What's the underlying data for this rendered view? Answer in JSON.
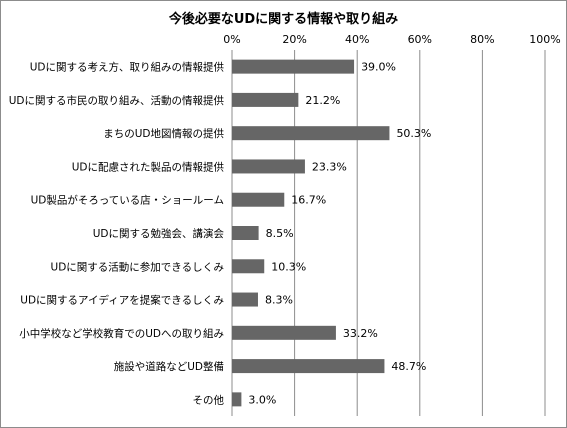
{
  "chart_data": {
    "type": "bar",
    "orientation": "horizontal",
    "title": "今後必要なUDに関する情報や取り組み",
    "xlim": [
      0,
      100
    ],
    "x_ticks": [
      "0%",
      "20%",
      "40%",
      "60%",
      "80%",
      "100%"
    ],
    "x_tick_values": [
      0,
      20,
      40,
      60,
      80,
      100
    ],
    "grid": true,
    "bar_color": "#666666",
    "categories": [
      "UDに関する考え方、取り組みの情報提供",
      "UDに関する市民の取り組み、活動の情報提供",
      "まちのUD地図情報の提供",
      "UDに配慮された製品の情報提供",
      "UD製品がそろっている店・ショールーム",
      "UDに関する勉強会、講演会",
      "UDに関する活動に参加できるしくみ",
      "UDに関するアイディアを提案できるしくみ",
      "小中学校など学校教育でのUDへの取り組み",
      "施設や道路などUD整備",
      "その他"
    ],
    "values": [
      39.0,
      21.2,
      50.3,
      23.3,
      16.7,
      8.5,
      10.3,
      8.3,
      33.2,
      48.7,
      3.0
    ],
    "data_labels": [
      "39.0%",
      "21.2%",
      "50.3%",
      "23.3%",
      "16.7%",
      "8.5%",
      "10.3%",
      "8.3%",
      "33.2%",
      "48.7%",
      "3.0%"
    ]
  }
}
